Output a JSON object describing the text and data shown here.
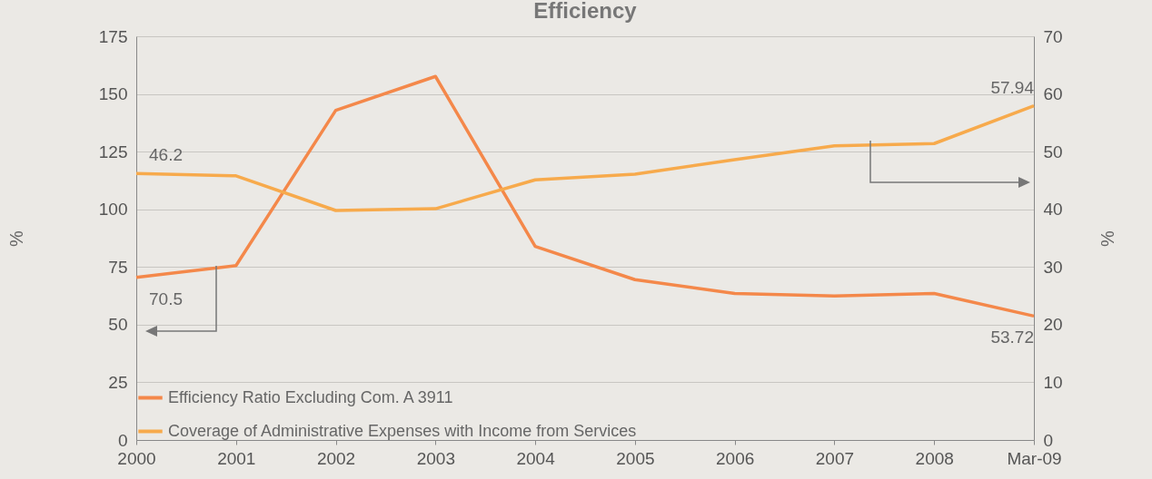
{
  "chart_data": {
    "type": "line",
    "title": "Efficiency",
    "ylabel": "%",
    "y2label": "%",
    "categories": [
      "2000",
      "2001",
      "2002",
      "2003",
      "2004",
      "2005",
      "2006",
      "2007",
      "2008",
      "Mar-09"
    ],
    "series": [
      {
        "name": "Efficiency Ratio Excluding Com. A 3911",
        "color": "#f4884a",
        "values": [
          70.5,
          75.6,
          142.9,
          157.6,
          83.9,
          69.5,
          63.5,
          62.4,
          63.5,
          53.72
        ],
        "value_labels": [
          "70.5",
          null,
          null,
          null,
          null,
          null,
          null,
          null,
          null,
          "53.72"
        ]
      },
      {
        "name": "Coverage of Administrative Expenses with Income from Services",
        "color": "#f7aa4c",
        "axis": "y2",
        "values": [
          46.2,
          45.8,
          39.8,
          40.1,
          45.1,
          46.1,
          48.6,
          51.0,
          51.4,
          57.94
        ],
        "value_labels": [
          "46.2",
          null,
          null,
          null,
          null,
          null,
          null,
          null,
          null,
          "57.94"
        ]
      }
    ],
    "ylim": [
      0,
      175
    ],
    "yticks": [
      0,
      25,
      50,
      75,
      100,
      125,
      150,
      175
    ],
    "y2lim": [
      0,
      70
    ],
    "y2ticks": [
      0,
      10,
      20,
      30,
      40,
      50,
      60,
      70
    ],
    "grid": "y",
    "legend": "bottom left",
    "marker": "none",
    "line_style": "solid"
  }
}
